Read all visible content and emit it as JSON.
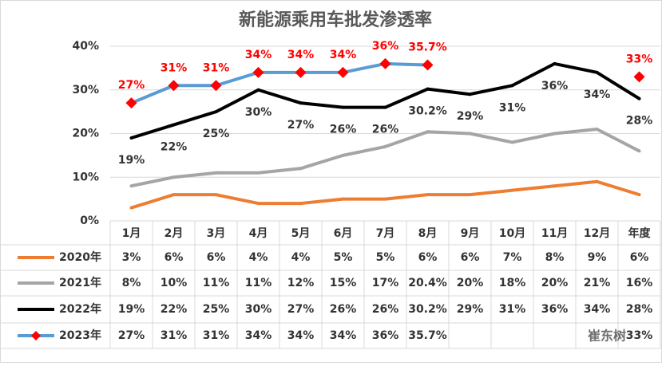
{
  "chart_data": {
    "type": "line",
    "title": "新能源乘用车批发渗透率",
    "categories": [
      "1月",
      "2月",
      "3月",
      "4月",
      "5月",
      "6月",
      "7月",
      "8月",
      "9月",
      "10月",
      "11月",
      "12月",
      "年度"
    ],
    "ylim": [
      0,
      40
    ],
    "yticks": [
      {
        "value": 0,
        "label": "0%"
      },
      {
        "value": 10,
        "label": "10%"
      },
      {
        "value": 20,
        "label": "20%"
      },
      {
        "value": 30,
        "label": "30%"
      },
      {
        "value": 40,
        "label": "40%"
      }
    ],
    "series": [
      {
        "name": "2020年",
        "color": "#ed7d31",
        "values": [
          3,
          6,
          6,
          4,
          4,
          5,
          5,
          6,
          6,
          7,
          8,
          9,
          6
        ],
        "value_labels": [
          "3%",
          "6%",
          "6%",
          "4%",
          "4%",
          "5%",
          "5%",
          "6%",
          "6%",
          "7%",
          "8%",
          "9%",
          "6%"
        ]
      },
      {
        "name": "2021年",
        "color": "#a5a5a5",
        "values": [
          8,
          10,
          11,
          11,
          12,
          15,
          17,
          20.4,
          20,
          18,
          20,
          21,
          16
        ],
        "value_labels": [
          "8%",
          "10%",
          "11%",
          "11%",
          "12%",
          "15%",
          "17%",
          "20.4%",
          "20%",
          "18%",
          "20%",
          "21%",
          "16%"
        ]
      },
      {
        "name": "2022年",
        "color": "#000000",
        "values": [
          19,
          22,
          25,
          30,
          27,
          26,
          26,
          30.2,
          29,
          31,
          36,
          34,
          28
        ],
        "value_labels": [
          "19%",
          "22%",
          "25%",
          "30%",
          "27%",
          "26%",
          "26%",
          "30.2%",
          "29%",
          "31%",
          "36%",
          "34%",
          "28%"
        ],
        "chart_labels": true,
        "label_color": "#333333"
      },
      {
        "name": "2023年",
        "color": "#5b9bd5",
        "marker_color": "#ff0000",
        "values": [
          27,
          31,
          31,
          34,
          34,
          34,
          36,
          35.7,
          null,
          null,
          null,
          null,
          33
        ],
        "value_labels": [
          "27%",
          "31%",
          "31%",
          "34%",
          "34%",
          "34%",
          "36%",
          "35.7%",
          null,
          null,
          null,
          null,
          "33%"
        ],
        "chart_labels": true,
        "label_color": "#ff0000"
      }
    ],
    "watermark": "崔东树"
  }
}
